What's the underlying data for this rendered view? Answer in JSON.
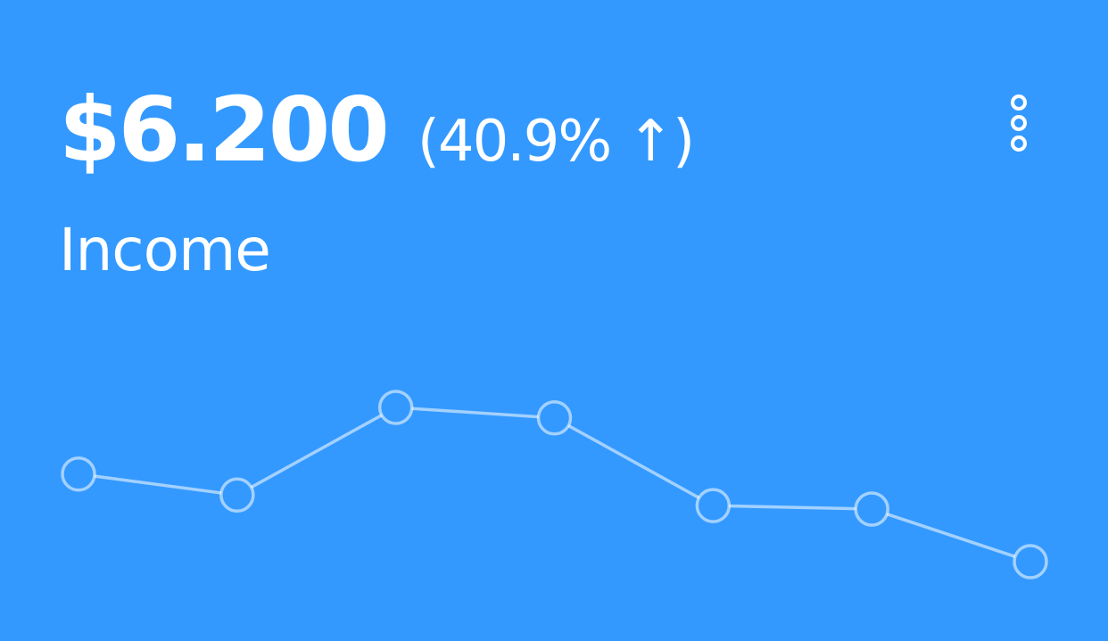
{
  "widget": {
    "amount": "$6.200",
    "change": "(40.9% ↑)",
    "label": "Income",
    "menu_icon": "kebab-menu-icon",
    "background_color": "#3399ff",
    "text_color": "#ffffff"
  },
  "chart_data": {
    "type": "line",
    "x": [
      1,
      2,
      3,
      4,
      5,
      6,
      7
    ],
    "values": [
      65,
      59,
      84,
      81,
      56,
      55,
      40
    ],
    "title": "",
    "xlabel": "",
    "ylabel": "",
    "grid": false,
    "legend": "none"
  }
}
